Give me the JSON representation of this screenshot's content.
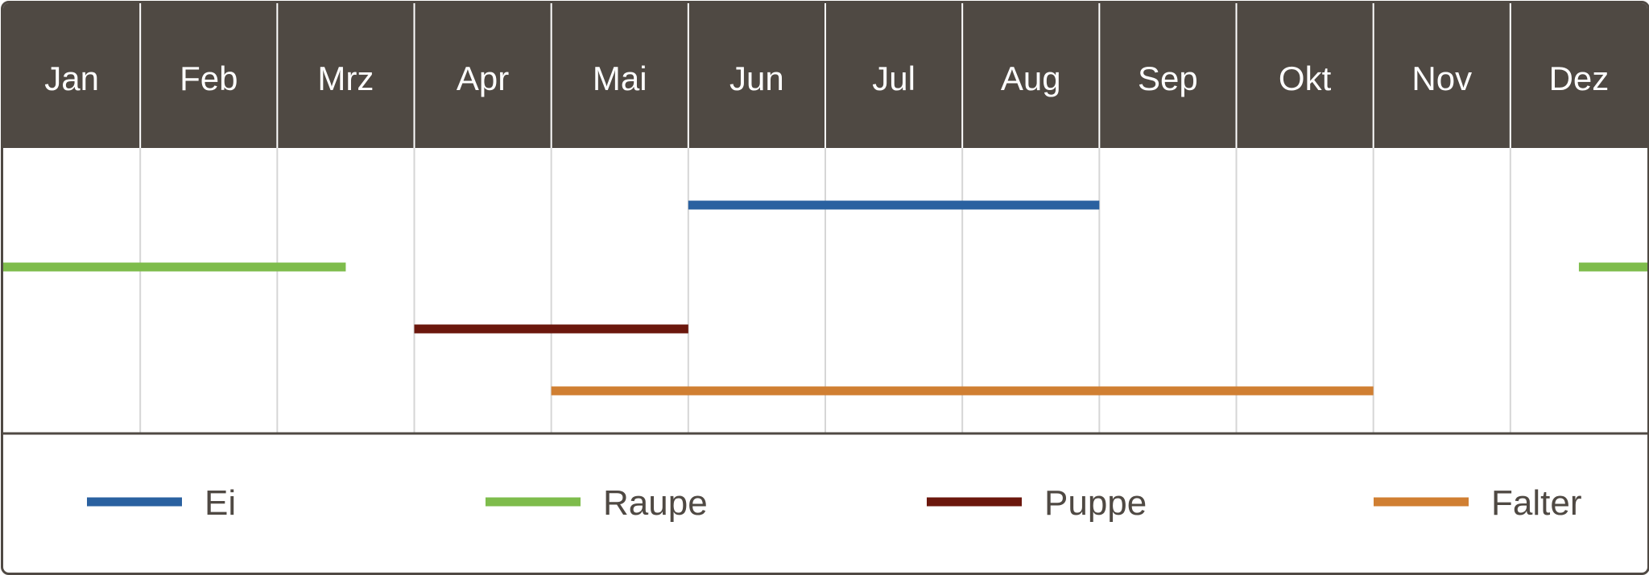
{
  "chart_data": {
    "type": "gantt",
    "categories": [
      "Jan",
      "Feb",
      "Mrz",
      "Apr",
      "Mai",
      "Jun",
      "Jul",
      "Aug",
      "Sep",
      "Okt",
      "Nov",
      "Dez"
    ],
    "colors": {
      "header_bg": "#4f4943",
      "grid": "#d6d6d6",
      "frame": "#4f4943"
    },
    "series": [
      {
        "name": "Ei",
        "color": "#2a61a0",
        "ranges": [
          [
            5.0,
            8.0
          ]
        ]
      },
      {
        "name": "Raupe",
        "color": "#7ebc4c",
        "ranges": [
          [
            0.0,
            2.5
          ],
          [
            11.5,
            12.0
          ]
        ]
      },
      {
        "name": "Puppe",
        "color": "#6b170d",
        "ranges": [
          [
            3.0,
            5.0
          ]
        ]
      },
      {
        "name": "Falter",
        "color": "#d07f32",
        "ranges": [
          [
            4.0,
            10.0
          ]
        ]
      }
    ],
    "xlim": [
      0,
      12
    ],
    "grid": true,
    "legend": "bottom"
  }
}
